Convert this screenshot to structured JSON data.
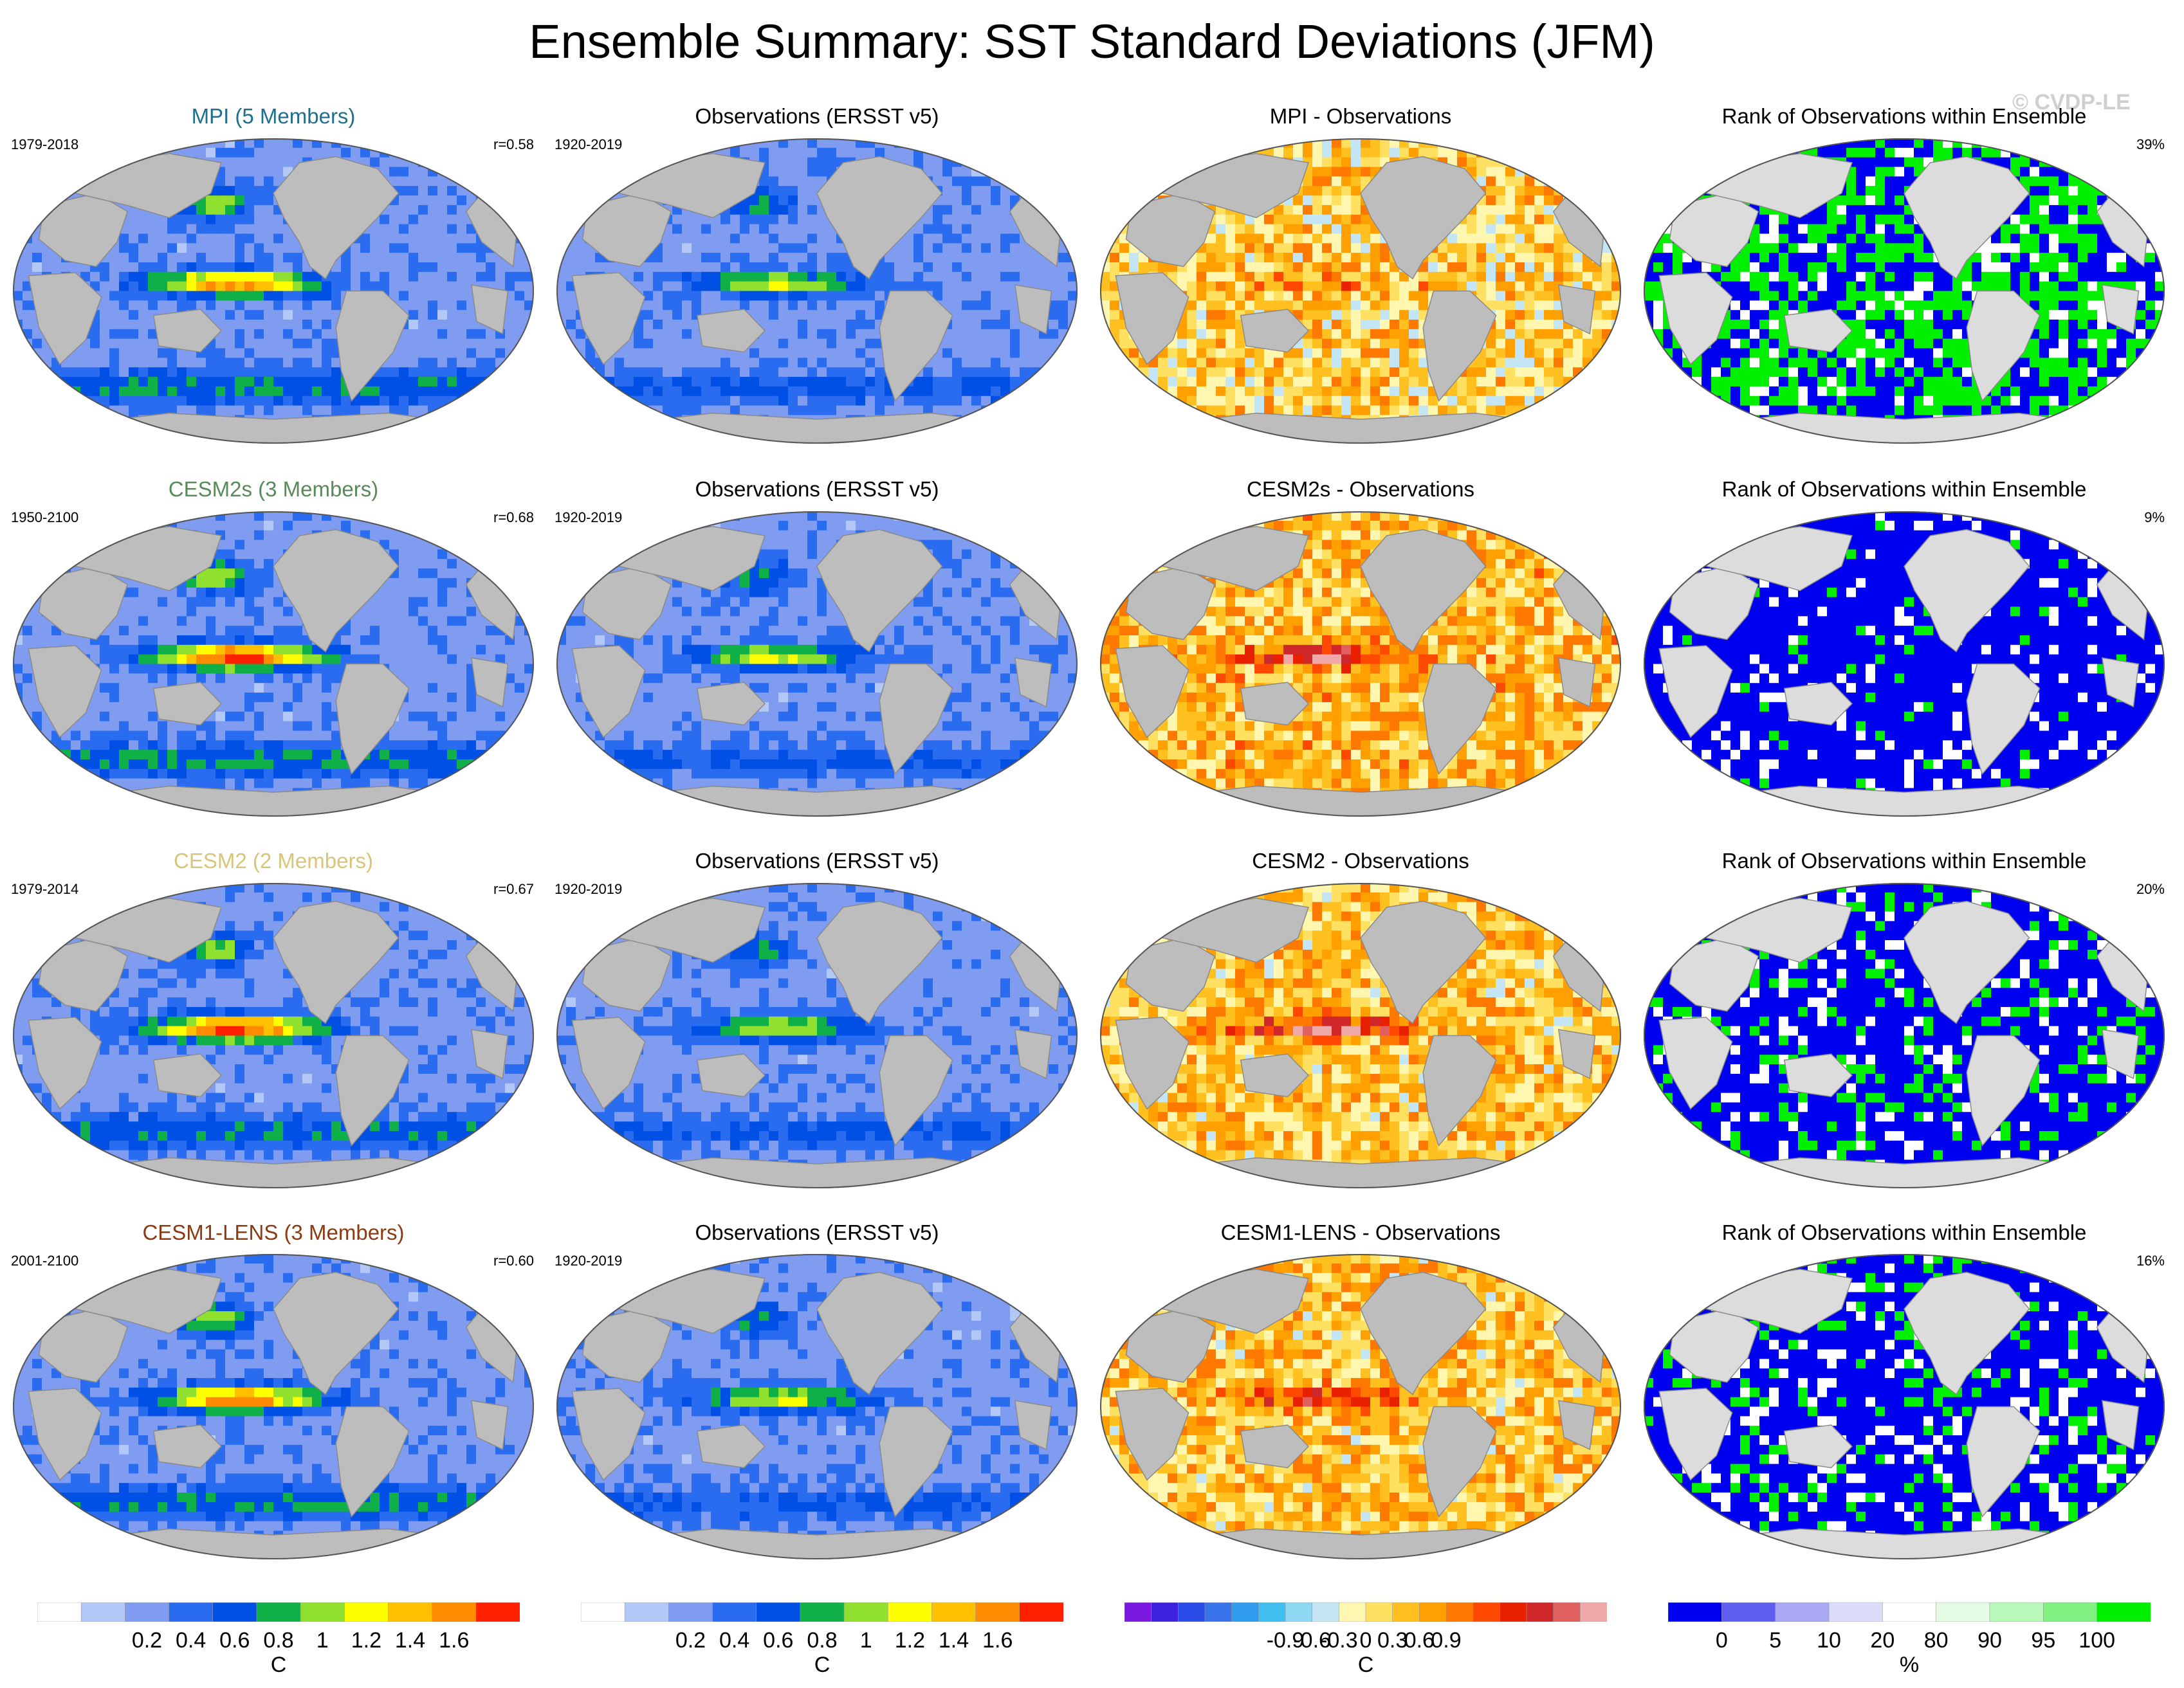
{
  "page": {
    "title": "Ensemble Summary: SST Standard Deviations (JFM)",
    "watermark": "© CVDP-LE"
  },
  "chart_data": [
    {
      "type": "heatmap",
      "row": 0,
      "col": 0,
      "title": "MPI (5 Members)",
      "title_color": "#1f6f8f",
      "left_label": "1979-2018",
      "right_label": "r=0.58",
      "map": "sd",
      "intensity": 1.0,
      "hotspot": 0.85
    },
    {
      "type": "heatmap",
      "row": 0,
      "col": 1,
      "title": "Observations (ERSST v5)",
      "title_color": "#000000",
      "left_label": "1920-2019",
      "right_label": "",
      "map": "sd",
      "intensity": 0.7,
      "hotspot": 0.55
    },
    {
      "type": "heatmap",
      "row": 0,
      "col": 2,
      "title": "MPI - Observations",
      "title_color": "#000000",
      "left_label": "",
      "right_label": "",
      "map": "diff",
      "intensity": 0.5,
      "hotspot": 0.4
    },
    {
      "type": "heatmap",
      "row": 0,
      "col": 3,
      "title": "Rank of Observations within Ensemble",
      "title_color": "#000000",
      "left_label": "",
      "right_label": "39%",
      "map": "rank",
      "blue_share": 0.39
    },
    {
      "type": "heatmap",
      "row": 1,
      "col": 0,
      "title": "CESM2s (3 Members)",
      "title_color": "#5a8a5a",
      "left_label": "1950-2100",
      "right_label": "r=0.68",
      "map": "sd",
      "intensity": 1.05,
      "hotspot": 1.0
    },
    {
      "type": "heatmap",
      "row": 1,
      "col": 1,
      "title": "Observations (ERSST v5)",
      "title_color": "#000000",
      "left_label": "1920-2019",
      "right_label": "",
      "map": "sd",
      "intensity": 0.7,
      "hotspot": 0.55
    },
    {
      "type": "heatmap",
      "row": 1,
      "col": 2,
      "title": "CESM2s - Observations",
      "title_color": "#000000",
      "left_label": "",
      "right_label": "",
      "map": "diff",
      "intensity": 0.85,
      "hotspot": 0.9
    },
    {
      "type": "heatmap",
      "row": 1,
      "col": 3,
      "title": "Rank of Observations within Ensemble",
      "title_color": "#000000",
      "left_label": "",
      "right_label": "9%",
      "map": "rank",
      "blue_share": 0.82
    },
    {
      "type": "heatmap",
      "row": 2,
      "col": 0,
      "title": "CESM2 (2 Members)",
      "title_color": "#d8c47a",
      "left_label": "1979-2014",
      "right_label": "r=0.67",
      "map": "sd",
      "intensity": 0.95,
      "hotspot": 1.0
    },
    {
      "type": "heatmap",
      "row": 2,
      "col": 1,
      "title": "Observations (ERSST v5)",
      "title_color": "#000000",
      "left_label": "1920-2019",
      "right_label": "",
      "map": "sd",
      "intensity": 0.7,
      "hotspot": 0.55
    },
    {
      "type": "heatmap",
      "row": 2,
      "col": 2,
      "title": "CESM2 - Observations",
      "title_color": "#000000",
      "left_label": "",
      "right_label": "",
      "map": "diff",
      "intensity": 0.7,
      "hotspot": 0.9
    },
    {
      "type": "heatmap",
      "row": 2,
      "col": 3,
      "title": "Rank of Observations within Ensemble",
      "title_color": "#000000",
      "left_label": "",
      "right_label": "20%",
      "map": "rank",
      "blue_share": 0.7
    },
    {
      "type": "heatmap",
      "row": 3,
      "col": 0,
      "title": "CESM1-LENS (3 Members)",
      "title_color": "#8b3a12",
      "left_label": "2001-2100",
      "right_label": "r=0.60",
      "map": "sd",
      "intensity": 1.0,
      "hotspot": 0.9
    },
    {
      "type": "heatmap",
      "row": 3,
      "col": 1,
      "title": "Observations (ERSST v5)",
      "title_color": "#000000",
      "left_label": "1920-2019",
      "right_label": "",
      "map": "sd",
      "intensity": 0.7,
      "hotspot": 0.55
    },
    {
      "type": "heatmap",
      "row": 3,
      "col": 2,
      "title": "CESM1-LENS - Observations",
      "title_color": "#000000",
      "left_label": "",
      "right_label": "",
      "map": "diff",
      "intensity": 0.75,
      "hotspot": 0.7
    },
    {
      "type": "heatmap",
      "row": 3,
      "col": 3,
      "title": "Rank of Observations within Ensemble",
      "title_color": "#000000",
      "left_label": "",
      "right_label": "16%",
      "map": "rank",
      "blue_share": 0.72
    }
  ],
  "colorbars": [
    {
      "col": 0,
      "unit": "C",
      "labels": [
        "0.2",
        "0.4",
        "0.6",
        "0.8",
        "1",
        "1.2",
        "1.4",
        "1.6"
      ],
      "colors": [
        "#ffffff",
        "#b4c8f8",
        "#7f9cf0",
        "#2a6cf0",
        "#0050e6",
        "#10b048",
        "#90e030",
        "#ffff00",
        "#ffc000",
        "#ff8c00",
        "#ff2000"
      ]
    },
    {
      "col": 1,
      "unit": "C",
      "labels": [
        "0.2",
        "0.4",
        "0.6",
        "0.8",
        "1",
        "1.2",
        "1.4",
        "1.6"
      ],
      "colors": [
        "#ffffff",
        "#b4c8f8",
        "#7f9cf0",
        "#2a6cf0",
        "#0050e6",
        "#10b048",
        "#90e030",
        "#ffff00",
        "#ffc000",
        "#ff8c00",
        "#ff2000"
      ]
    },
    {
      "col": 2,
      "unit": "C",
      "labels": [
        "-0.9",
        "-0.6",
        "-0.3",
        "0",
        "0.3",
        "0.6",
        "0.9"
      ],
      "colors": [
        "#7a18e0",
        "#3c22e0",
        "#2a4ce8",
        "#3a74ea",
        "#2f9cf0",
        "#40bff0",
        "#8fd8f4",
        "#c4e6f4",
        "#fff7b0",
        "#ffe060",
        "#ffc020",
        "#ffa000",
        "#ff7800",
        "#ff4800",
        "#e82000",
        "#d0282a",
        "#e06060",
        "#f0a8a8"
      ]
    },
    {
      "col": 3,
      "unit": "%",
      "labels": [
        "0",
        "5",
        "10",
        "20",
        "80",
        "90",
        "95",
        "100"
      ],
      "colors": [
        "#0000f0",
        "#6060f0",
        "#a8a8f4",
        "#dcdcfa",
        "#ffffff",
        "#e4fce4",
        "#b8f8b8",
        "#80f080",
        "#00f000"
      ]
    }
  ]
}
